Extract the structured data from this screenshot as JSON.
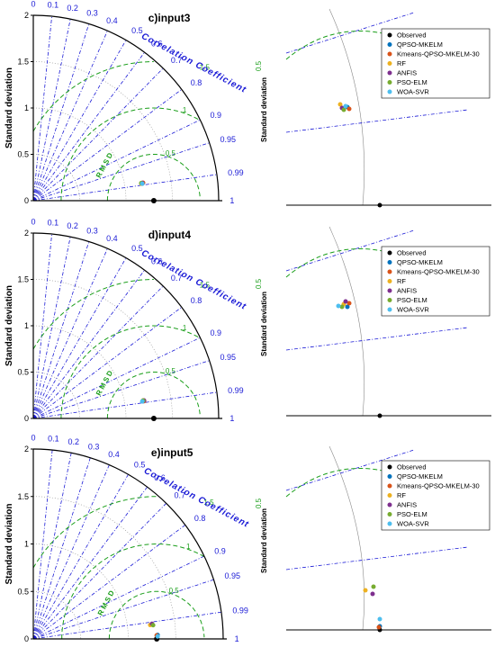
{
  "chart_data": [
    {
      "type": "taylor",
      "title": "c)input3",
      "ylabel": "Standard deviation",
      "corr_label": "Correlation Coefficient",
      "rmsd_label": "R M S D",
      "std_ticks": [
        "0",
        "0.5",
        "1",
        "1.5",
        "2"
      ],
      "corr_ticks": [
        "0",
        "0.1",
        "0.2",
        "0.3",
        "0.4",
        "0.5",
        "0.6",
        "0.7",
        "0.8",
        "0.9",
        "0.95",
        "0.99",
        "1"
      ],
      "rmsd_ticks": [
        "0.5",
        "1",
        "1.5"
      ],
      "observed_std": 1.3,
      "points": [
        {
          "name": "QPSO-MKELM",
          "std": 1.19,
          "corr": 0.988
        },
        {
          "name": "Kmeans-QPSO-MKELM-30",
          "std": 1.2,
          "corr": 0.987
        },
        {
          "name": "RF",
          "std": 1.18,
          "corr": 0.988
        },
        {
          "name": "ANFIS",
          "std": 1.19,
          "corr": 0.987
        },
        {
          "name": "PSO-ELM",
          "std": 1.18,
          "corr": 0.987
        },
        {
          "name": "WOA-SVR",
          "std": 1.19,
          "corr": 0.988
        }
      ],
      "zoom_rmsd_label": "0.5"
    },
    {
      "type": "taylor",
      "title": "d)input4",
      "ylabel": "Standard deviation",
      "corr_label": "Correlation Coefficient",
      "rmsd_label": "R M S D",
      "std_ticks": [
        "0",
        "0.5",
        "1",
        "1.5",
        "2"
      ],
      "corr_ticks": [
        "0",
        "0.1",
        "0.2",
        "0.3",
        "0.4",
        "0.5",
        "0.6",
        "0.7",
        "0.8",
        "0.9",
        "0.95",
        "0.99",
        "1"
      ],
      "rmsd_ticks": [
        "0.5",
        "1",
        "1.5"
      ],
      "observed_std": 1.3,
      "points": [
        {
          "name": "QPSO-MKELM",
          "std": 1.2,
          "corr": 0.988
        },
        {
          "name": "Kmeans-QPSO-MKELM-30",
          "std": 1.21,
          "corr": 0.988
        },
        {
          "name": "RF",
          "std": 1.2,
          "corr": 0.987
        },
        {
          "name": "ANFIS",
          "std": 1.21,
          "corr": 0.987
        },
        {
          "name": "PSO-ELM",
          "std": 1.2,
          "corr": 0.987
        },
        {
          "name": "WOA-SVR",
          "std": 1.19,
          "corr": 0.988
        }
      ],
      "zoom_rmsd_label": "0.5"
    },
    {
      "type": "taylor",
      "title": "e)input5",
      "ylabel": "Standard deviation",
      "corr_label": "Correlation Coefficient",
      "rmsd_label": "R M S D",
      "std_ticks": [
        "0",
        "0.5",
        "1",
        "1.5",
        "2"
      ],
      "corr_ticks": [
        "0",
        "0.1",
        "0.2",
        "0.3",
        "0.4",
        "0.5",
        "0.6",
        "0.7",
        "0.8",
        "0.9",
        "0.95",
        "0.99",
        "1"
      ],
      "rmsd_ticks": [
        "0.5",
        "1",
        "1.5"
      ],
      "observed_std": 1.3,
      "points": [
        {
          "name": "QPSO-MKELM",
          "std": 1.31,
          "corr": 0.9995
        },
        {
          "name": "Kmeans-QPSO-MKELM-30",
          "std": 1.3,
          "corr": 0.9996
        },
        {
          "name": "RF",
          "std": 1.24,
          "corr": 0.993
        },
        {
          "name": "ANFIS",
          "std": 1.26,
          "corr": 0.992
        },
        {
          "name": "PSO-ELM",
          "std": 1.27,
          "corr": 0.9935
        },
        {
          "name": "WOA-SVR",
          "std": 1.31,
          "corr": 0.9998
        }
      ],
      "zoom_rmsd_label": "0.5"
    }
  ],
  "legend": {
    "observed": {
      "label": "Observed",
      "color": "#000000"
    },
    "series": [
      {
        "label": "QPSO-MKELM",
        "color": "#0072bd"
      },
      {
        "label": "Kmeans-QPSO-MKELM-30",
        "color": "#d95319"
      },
      {
        "label": "RF",
        "color": "#edb120"
      },
      {
        "label": "ANFIS",
        "color": "#7e2f8e"
      },
      {
        "label": "PSO-ELM",
        "color": "#77ac30"
      },
      {
        "label": "WOA-SVR",
        "color": "#4dbeee"
      }
    ]
  },
  "colors": {
    "axis": "#000000",
    "corr": "#1a1ad6",
    "rmsd": "#1a9e1a",
    "std_grid": "#888888"
  }
}
